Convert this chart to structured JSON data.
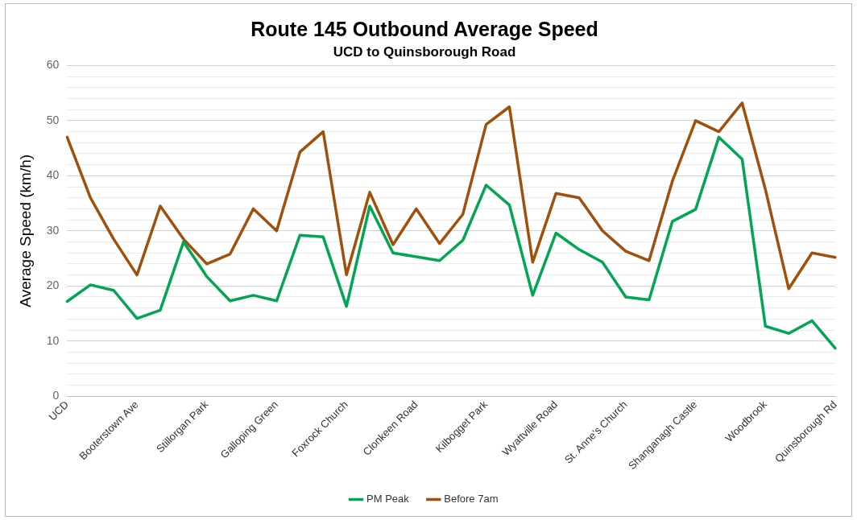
{
  "chart_data": {
    "type": "line",
    "title": "Route 145 Outbound Average Speed",
    "subtitle": "UCD to Quinsborough Road",
    "ylabel": "Average Speed (km/h)",
    "categories": [
      "UCD",
      null,
      null,
      "Booterstown Ave",
      null,
      null,
      "Stillorgan Park",
      null,
      null,
      "Galloping Green",
      null,
      null,
      "Foxrock Church",
      null,
      null,
      "Clonkeen Road",
      null,
      null,
      "Kilbogget Park",
      null,
      null,
      "Wyattville Road",
      null,
      null,
      "St. Anne's Church",
      null,
      null,
      "Shanganagh Castle",
      null,
      null,
      "Woodbrook",
      null,
      null,
      "Quinsborough Rd"
    ],
    "series": [
      {
        "name": "PM Peak",
        "color": "#00a651",
        "values": [
          17.2,
          20.2,
          19.2,
          14.1,
          15.6,
          28,
          21.7,
          17.3,
          18.3,
          17.3,
          29.2,
          28.9,
          16.3,
          34.5,
          26,
          25.3,
          24.6,
          28.3,
          38.3,
          34.7,
          18.3,
          29.6,
          26.6,
          24.3,
          18,
          17.5,
          31.7,
          33.9,
          47,
          43,
          12.7,
          11.4,
          13.7,
          8.7
        ]
      },
      {
        "name": "Before 7am",
        "color": "#a0500a",
        "values": [
          47,
          36,
          28.5,
          22,
          34.5,
          28.5,
          24,
          25.8,
          34,
          30,
          44.3,
          48,
          22,
          37,
          27.5,
          34,
          27.7,
          33,
          49.3,
          52.5,
          24.3,
          36.8,
          36,
          30,
          26.3,
          24.6,
          39,
          50,
          48,
          53.2,
          37.5,
          19.5,
          26,
          25.2
        ]
      }
    ],
    "ylim": [
      0,
      60
    ],
    "yticks": [
      0,
      {
        "value": 2,
        "label": null
      },
      {
        "value": 4,
        "label": null
      },
      {
        "value": 6,
        "label": null
      },
      {
        "value": 8,
        "label": null
      },
      10,
      {
        "value": 12,
        "label": null
      },
      {
        "value": 14,
        "label": null
      },
      {
        "value": 16,
        "label": null
      },
      {
        "value": 18,
        "label": null
      },
      20,
      {
        "value": 22,
        "label": null
      },
      {
        "value": 24,
        "label": null
      },
      {
        "value": 26,
        "label": null
      },
      {
        "value": 28,
        "label": null
      },
      30,
      {
        "value": 32,
        "label": null
      },
      {
        "value": 34,
        "label": null
      },
      {
        "value": 36,
        "label": null
      },
      {
        "value": 38,
        "label": null
      },
      40,
      {
        "value": 42,
        "label": null
      },
      {
        "value": 44,
        "label": null
      },
      {
        "value": 46,
        "label": null
      },
      {
        "value": 48,
        "label": null
      },
      50,
      {
        "value": 52,
        "label": null
      },
      {
        "value": 54,
        "label": null
      },
      {
        "value": 56,
        "label": null
      },
      {
        "value": 58,
        "label": null
      },
      60
    ],
    "grid": "y",
    "legend": "bottom",
    "marker": "none",
    "line_style": "solid"
  }
}
